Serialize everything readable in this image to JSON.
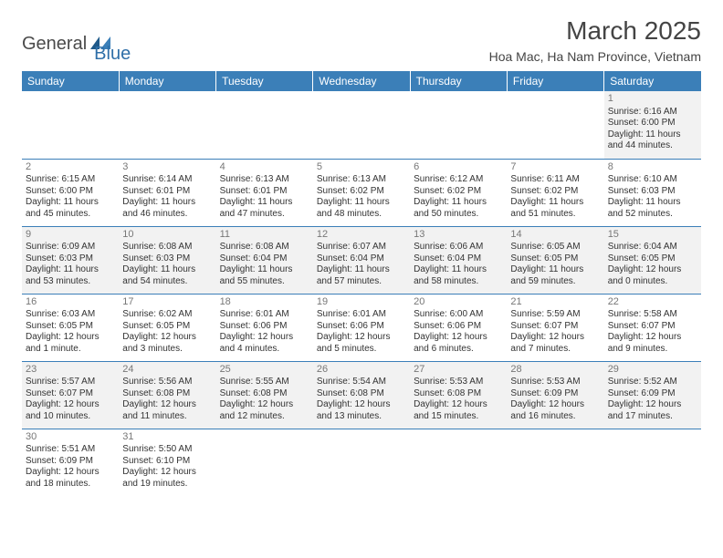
{
  "brand": {
    "general": "General",
    "blue": "Blue"
  },
  "title": "March 2025",
  "subtitle": "Hoa Mac, Ha Nam Province, Vietnam",
  "colors": {
    "header_bg": "#3b7fb8",
    "header_text": "#ffffff",
    "row_alt_bg": "#f2f2f2",
    "row_bg": "#ffffff",
    "border": "#3b7fb8",
    "daynum": "#777777",
    "text": "#333333"
  },
  "days": [
    "Sunday",
    "Monday",
    "Tuesday",
    "Wednesday",
    "Thursday",
    "Friday",
    "Saturday"
  ],
  "weeks": [
    [
      null,
      null,
      null,
      null,
      null,
      null,
      {
        "n": "1",
        "sunrise": "Sunrise: 6:16 AM",
        "sunset": "Sunset: 6:00 PM",
        "daylight": "Daylight: 11 hours and 44 minutes."
      }
    ],
    [
      {
        "n": "2",
        "sunrise": "Sunrise: 6:15 AM",
        "sunset": "Sunset: 6:00 PM",
        "daylight": "Daylight: 11 hours and 45 minutes."
      },
      {
        "n": "3",
        "sunrise": "Sunrise: 6:14 AM",
        "sunset": "Sunset: 6:01 PM",
        "daylight": "Daylight: 11 hours and 46 minutes."
      },
      {
        "n": "4",
        "sunrise": "Sunrise: 6:13 AM",
        "sunset": "Sunset: 6:01 PM",
        "daylight": "Daylight: 11 hours and 47 minutes."
      },
      {
        "n": "5",
        "sunrise": "Sunrise: 6:13 AM",
        "sunset": "Sunset: 6:02 PM",
        "daylight": "Daylight: 11 hours and 48 minutes."
      },
      {
        "n": "6",
        "sunrise": "Sunrise: 6:12 AM",
        "sunset": "Sunset: 6:02 PM",
        "daylight": "Daylight: 11 hours and 50 minutes."
      },
      {
        "n": "7",
        "sunrise": "Sunrise: 6:11 AM",
        "sunset": "Sunset: 6:02 PM",
        "daylight": "Daylight: 11 hours and 51 minutes."
      },
      {
        "n": "8",
        "sunrise": "Sunrise: 6:10 AM",
        "sunset": "Sunset: 6:03 PM",
        "daylight": "Daylight: 11 hours and 52 minutes."
      }
    ],
    [
      {
        "n": "9",
        "sunrise": "Sunrise: 6:09 AM",
        "sunset": "Sunset: 6:03 PM",
        "daylight": "Daylight: 11 hours and 53 minutes."
      },
      {
        "n": "10",
        "sunrise": "Sunrise: 6:08 AM",
        "sunset": "Sunset: 6:03 PM",
        "daylight": "Daylight: 11 hours and 54 minutes."
      },
      {
        "n": "11",
        "sunrise": "Sunrise: 6:08 AM",
        "sunset": "Sunset: 6:04 PM",
        "daylight": "Daylight: 11 hours and 55 minutes."
      },
      {
        "n": "12",
        "sunrise": "Sunrise: 6:07 AM",
        "sunset": "Sunset: 6:04 PM",
        "daylight": "Daylight: 11 hours and 57 minutes."
      },
      {
        "n": "13",
        "sunrise": "Sunrise: 6:06 AM",
        "sunset": "Sunset: 6:04 PM",
        "daylight": "Daylight: 11 hours and 58 minutes."
      },
      {
        "n": "14",
        "sunrise": "Sunrise: 6:05 AM",
        "sunset": "Sunset: 6:05 PM",
        "daylight": "Daylight: 11 hours and 59 minutes."
      },
      {
        "n": "15",
        "sunrise": "Sunrise: 6:04 AM",
        "sunset": "Sunset: 6:05 PM",
        "daylight": "Daylight: 12 hours and 0 minutes."
      }
    ],
    [
      {
        "n": "16",
        "sunrise": "Sunrise: 6:03 AM",
        "sunset": "Sunset: 6:05 PM",
        "daylight": "Daylight: 12 hours and 1 minute."
      },
      {
        "n": "17",
        "sunrise": "Sunrise: 6:02 AM",
        "sunset": "Sunset: 6:05 PM",
        "daylight": "Daylight: 12 hours and 3 minutes."
      },
      {
        "n": "18",
        "sunrise": "Sunrise: 6:01 AM",
        "sunset": "Sunset: 6:06 PM",
        "daylight": "Daylight: 12 hours and 4 minutes."
      },
      {
        "n": "19",
        "sunrise": "Sunrise: 6:01 AM",
        "sunset": "Sunset: 6:06 PM",
        "daylight": "Daylight: 12 hours and 5 minutes."
      },
      {
        "n": "20",
        "sunrise": "Sunrise: 6:00 AM",
        "sunset": "Sunset: 6:06 PM",
        "daylight": "Daylight: 12 hours and 6 minutes."
      },
      {
        "n": "21",
        "sunrise": "Sunrise: 5:59 AM",
        "sunset": "Sunset: 6:07 PM",
        "daylight": "Daylight: 12 hours and 7 minutes."
      },
      {
        "n": "22",
        "sunrise": "Sunrise: 5:58 AM",
        "sunset": "Sunset: 6:07 PM",
        "daylight": "Daylight: 12 hours and 9 minutes."
      }
    ],
    [
      {
        "n": "23",
        "sunrise": "Sunrise: 5:57 AM",
        "sunset": "Sunset: 6:07 PM",
        "daylight": "Daylight: 12 hours and 10 minutes."
      },
      {
        "n": "24",
        "sunrise": "Sunrise: 5:56 AM",
        "sunset": "Sunset: 6:08 PM",
        "daylight": "Daylight: 12 hours and 11 minutes."
      },
      {
        "n": "25",
        "sunrise": "Sunrise: 5:55 AM",
        "sunset": "Sunset: 6:08 PM",
        "daylight": "Daylight: 12 hours and 12 minutes."
      },
      {
        "n": "26",
        "sunrise": "Sunrise: 5:54 AM",
        "sunset": "Sunset: 6:08 PM",
        "daylight": "Daylight: 12 hours and 13 minutes."
      },
      {
        "n": "27",
        "sunrise": "Sunrise: 5:53 AM",
        "sunset": "Sunset: 6:08 PM",
        "daylight": "Daylight: 12 hours and 15 minutes."
      },
      {
        "n": "28",
        "sunrise": "Sunrise: 5:53 AM",
        "sunset": "Sunset: 6:09 PM",
        "daylight": "Daylight: 12 hours and 16 minutes."
      },
      {
        "n": "29",
        "sunrise": "Sunrise: 5:52 AM",
        "sunset": "Sunset: 6:09 PM",
        "daylight": "Daylight: 12 hours and 17 minutes."
      }
    ],
    [
      {
        "n": "30",
        "sunrise": "Sunrise: 5:51 AM",
        "sunset": "Sunset: 6:09 PM",
        "daylight": "Daylight: 12 hours and 18 minutes."
      },
      {
        "n": "31",
        "sunrise": "Sunrise: 5:50 AM",
        "sunset": "Sunset: 6:10 PM",
        "daylight": "Daylight: 12 hours and 19 minutes."
      },
      null,
      null,
      null,
      null,
      null
    ]
  ]
}
